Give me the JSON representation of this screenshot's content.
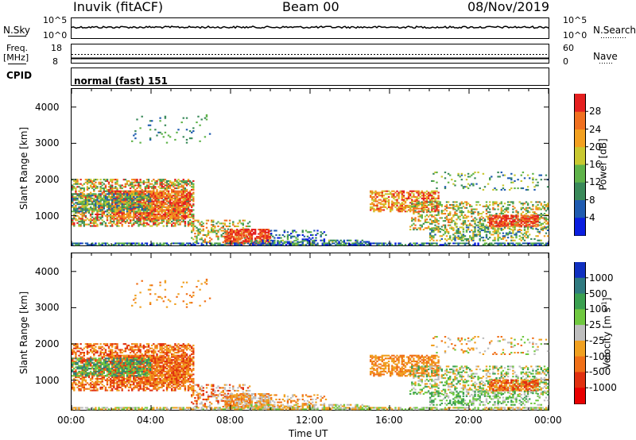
{
  "header": {
    "station": "Inuvik (fitACF)",
    "beam": "Beam 00",
    "date": "08/Nov/2019"
  },
  "top_panels": {
    "nsky_label": "N.Sky",
    "nsky_ticks": [
      "10^5",
      "10^0"
    ],
    "nsearch_label": "N.Search",
    "nsearch_ticks": [
      "10^5",
      "10^0"
    ],
    "freq_label": "Freq.",
    "freq_unit": "[MHz]",
    "freq_ticks": [
      "18",
      "8"
    ],
    "nave_label": "Nave",
    "nave_ticks": [
      "60",
      "0"
    ],
    "cpid_label": "CPID",
    "cpid_value": "normal (fast) 151"
  },
  "chart_data": [
    {
      "type": "heatmap",
      "name": "power-panel",
      "ylabel": "Slant Range [km]",
      "y_ticks": [
        1000,
        2000,
        3000,
        4000
      ],
      "ylim": [
        180,
        4500
      ],
      "xlim_hours": [
        0,
        24
      ],
      "colorbar_label": "Power [dB]",
      "colorbar_ticks": [
        "4",
        "8",
        "12",
        "16",
        "20",
        "24",
        "28"
      ],
      "colorbar_colors": [
        "#0a1ee0",
        "#1f5bb0",
        "#3a8a5a",
        "#5fb34a",
        "#c8c830",
        "#f2a020",
        "#f07020",
        "#e42020"
      ]
    },
    {
      "type": "heatmap",
      "name": "velocity-panel",
      "ylabel": "Slant Range [km]",
      "y_ticks": [
        1000,
        2000,
        3000,
        4000
      ],
      "ylim": [
        180,
        4500
      ],
      "xlim_hours": [
        0,
        24
      ],
      "colorbar_label": "Velocity [m s",
      "colorbar_label_sup": "-1",
      "colorbar_label_end": "]",
      "colorbar_ticks": [
        "1000",
        "500",
        "100",
        "25",
        "-25",
        "-100",
        "-500",
        "-1000"
      ],
      "colorbar_colors": [
        "#1030c0",
        "#2f7a80",
        "#3aa050",
        "#70c840",
        "#bebebe",
        "#f0a020",
        "#f07018",
        "#e03010",
        "#e80000"
      ]
    }
  ],
  "xaxis": {
    "ticks": [
      "00:00",
      "04:00",
      "08:00",
      "12:00",
      "16:00",
      "20:00",
      "00:00"
    ],
    "label": "Time UT"
  }
}
